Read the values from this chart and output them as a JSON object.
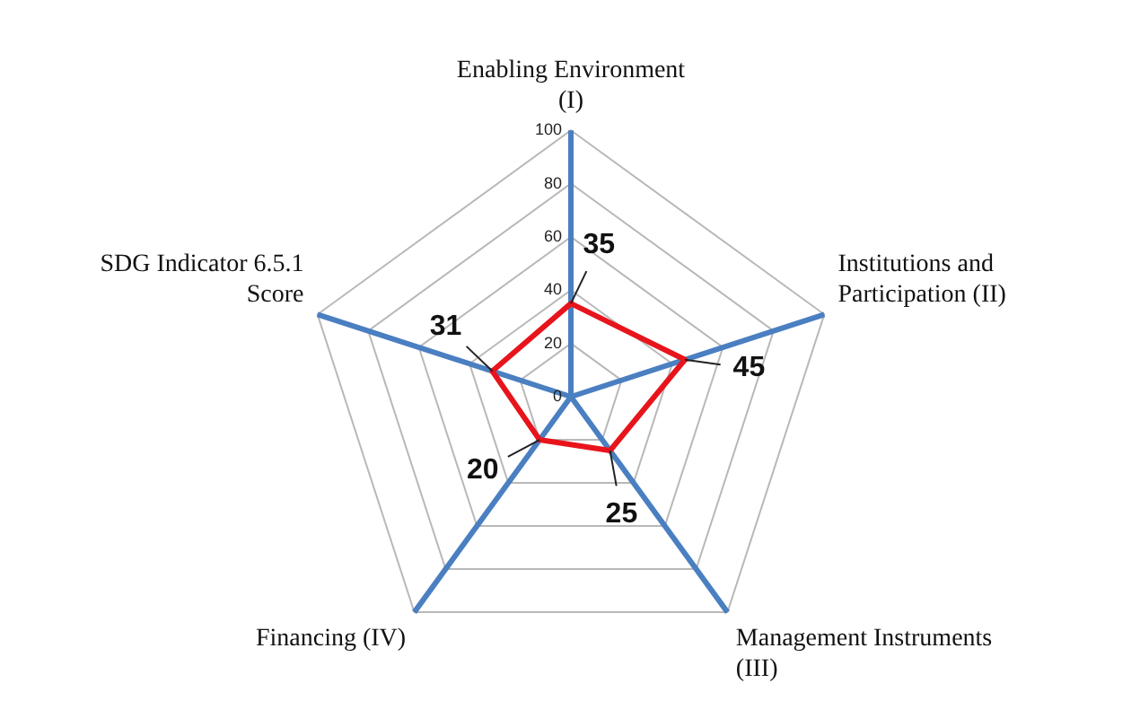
{
  "chart_data": {
    "type": "radar",
    "categories": [
      "Enabling Environment\n(I)",
      "Institutions and\nParticipation (II)",
      "Management Instruments\n(III)",
      "Financing (IV)",
      "SDG Indicator 6.5.1\nScore"
    ],
    "series": [
      {
        "color": "#e8141c",
        "values": [
          35,
          45,
          25,
          20,
          31
        ]
      }
    ],
    "ylim": [
      0,
      100
    ],
    "yticks": [
      0,
      20,
      40,
      60,
      80,
      100
    ],
    "grid": true,
    "legend": false,
    "data_labels": true,
    "marker": "none"
  }
}
